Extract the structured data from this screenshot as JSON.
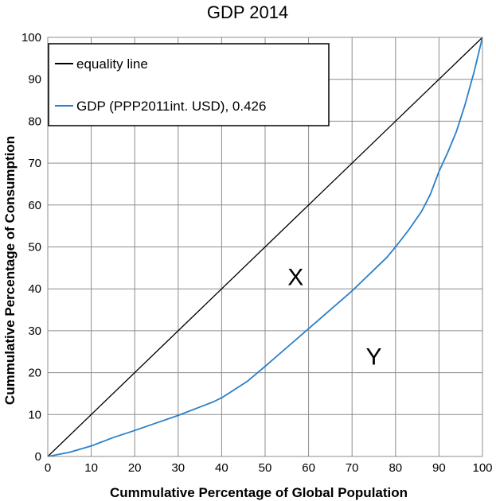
{
  "chart_data": {
    "type": "line",
    "title": "GDP 2014",
    "xlabel": "Cummulative Percentage of Global Population",
    "ylabel": "Cummulative Percentage of Consumption",
    "xlim": [
      0,
      100
    ],
    "ylim": [
      0,
      100
    ],
    "x_ticks": [
      0,
      10,
      20,
      30,
      40,
      50,
      60,
      70,
      80,
      90,
      100
    ],
    "y_ticks": [
      0,
      10,
      20,
      30,
      40,
      50,
      60,
      70,
      80,
      90,
      100
    ],
    "grid": true,
    "legend_position": "top-left",
    "series": [
      {
        "name": "equality line",
        "color": "#000000",
        "x": [
          0,
          100
        ],
        "y": [
          0,
          100
        ]
      },
      {
        "name": "GDP (PPP2011int. USD), 0.426",
        "color": "#2a7fc9",
        "x": [
          0,
          5,
          10,
          15,
          20,
          25,
          30,
          35,
          38,
          40,
          43,
          46,
          50,
          55,
          60,
          65,
          70,
          73,
          76,
          78,
          80,
          83,
          86,
          88,
          90,
          92,
          94,
          96,
          98,
          100
        ],
        "y": [
          0,
          1,
          2.5,
          4.5,
          6.2,
          8,
          9.8,
          11.8,
          13,
          14,
          16,
          18,
          21.5,
          26,
          30.5,
          35,
          39.5,
          42.5,
          45.5,
          47.5,
          50,
          54,
          58.5,
          62.5,
          68,
          72.5,
          77.5,
          84,
          91.5,
          100
        ]
      }
    ],
    "annotations": [
      {
        "text": "X",
        "x": 57,
        "y": 43
      },
      {
        "text": "Y",
        "x": 75,
        "y": 24
      }
    ]
  }
}
